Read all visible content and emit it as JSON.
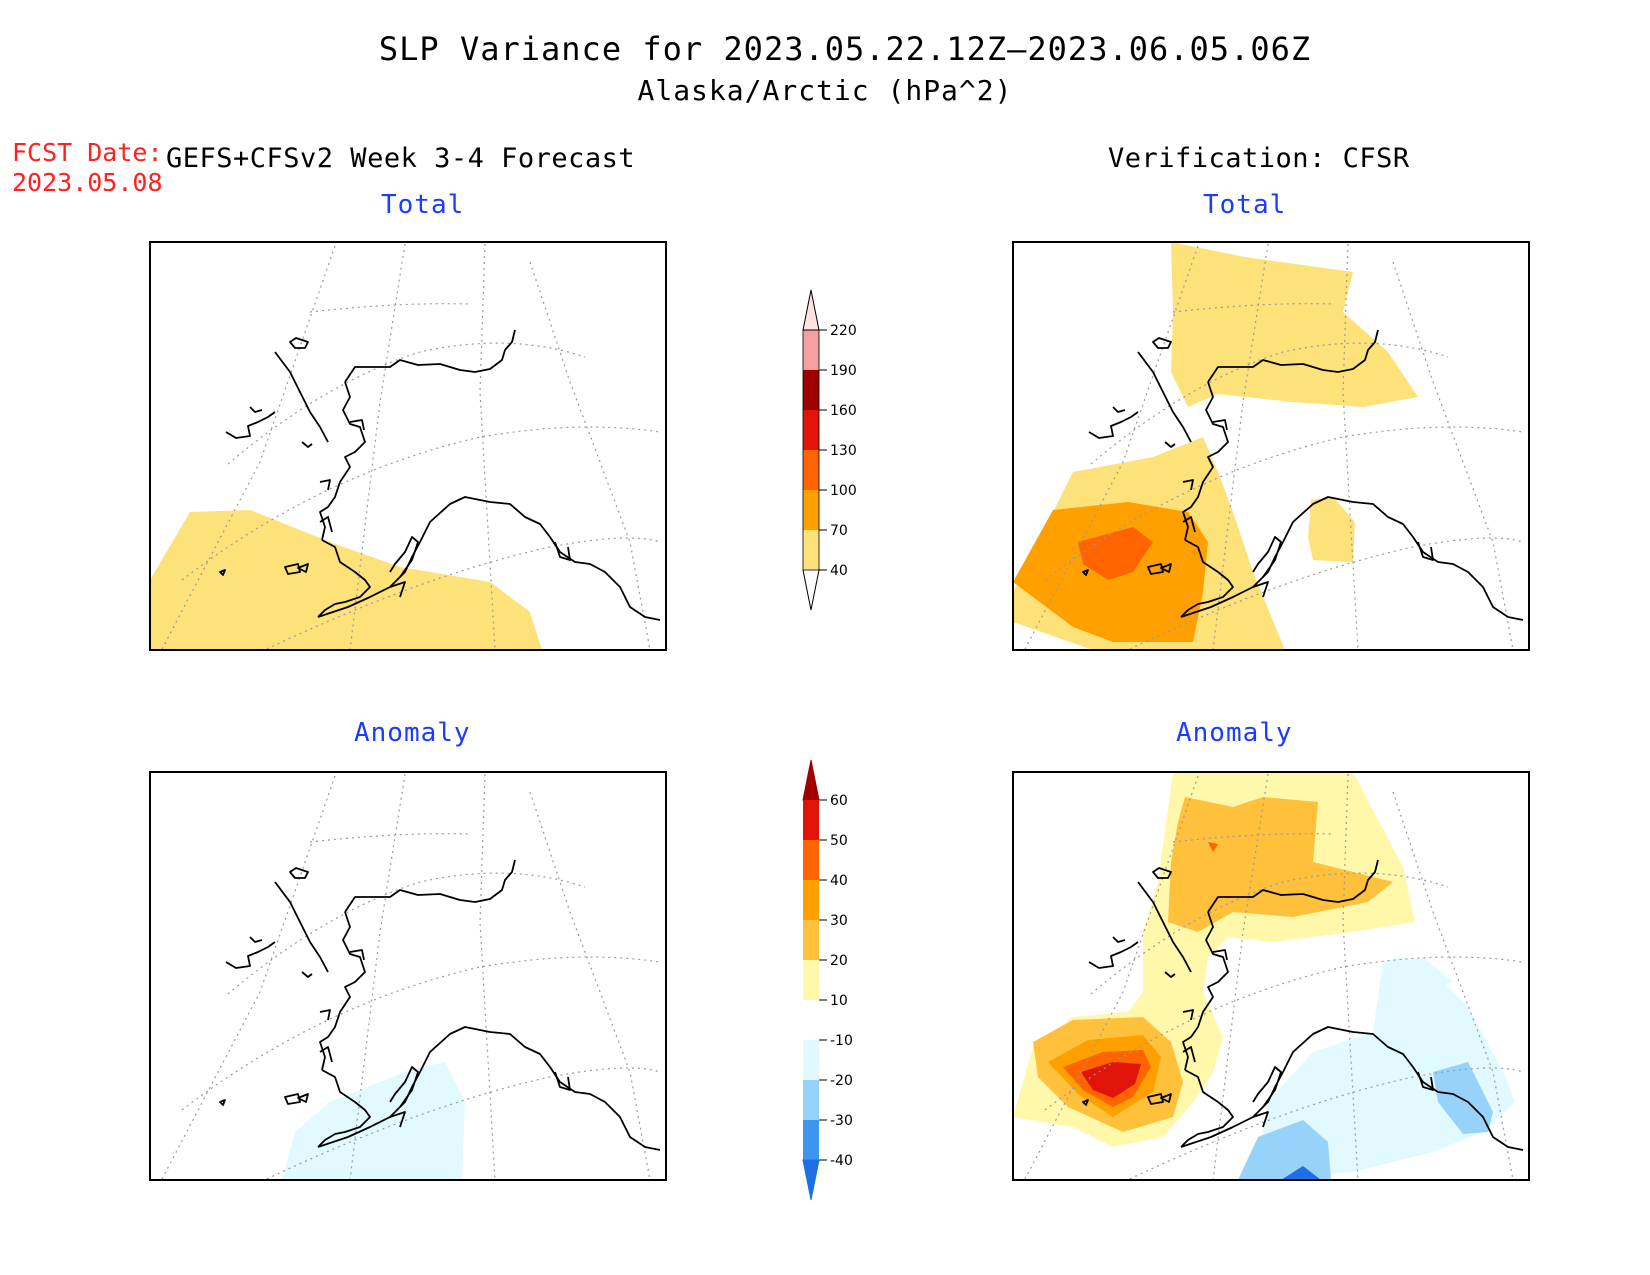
{
  "title": "SLP Variance for 2023.05.22.12Z—2023.06.05.06Z",
  "subtitle": "Alaska/Arctic (hPa^2)",
  "fcst_label": "FCST Date:",
  "fcst_date": "2023.05.08",
  "left_header": "GEFS+CFSv2 Week 3-4 Forecast",
  "right_header": "Verification: CFSR",
  "panels": {
    "fcst_total": "Total",
    "fcst_anomaly": "Anomaly",
    "verif_total": "Total",
    "verif_anomaly": "Anomaly"
  },
  "colorbar_total": {
    "levels": [
      "40",
      "70",
      "100",
      "130",
      "160",
      "190",
      "220"
    ],
    "colors": [
      "#fde27a",
      "#ffa000",
      "#ff6400",
      "#e01408",
      "#a00000",
      "#f4a0a0",
      "#fde2e0"
    ]
  },
  "colorbar_anomaly": {
    "levels": [
      "-40",
      "-30",
      "-20",
      "-10",
      "10",
      "20",
      "30",
      "40",
      "50",
      "60"
    ],
    "colors": [
      "#1e6ee6",
      "#3c96f0",
      "#96d2fa",
      "#e0faff",
      "#ffffff",
      "#fff8aa",
      "#ffc03c",
      "#ffa000",
      "#ff6400",
      "#e01408",
      "#a00000"
    ]
  }
}
